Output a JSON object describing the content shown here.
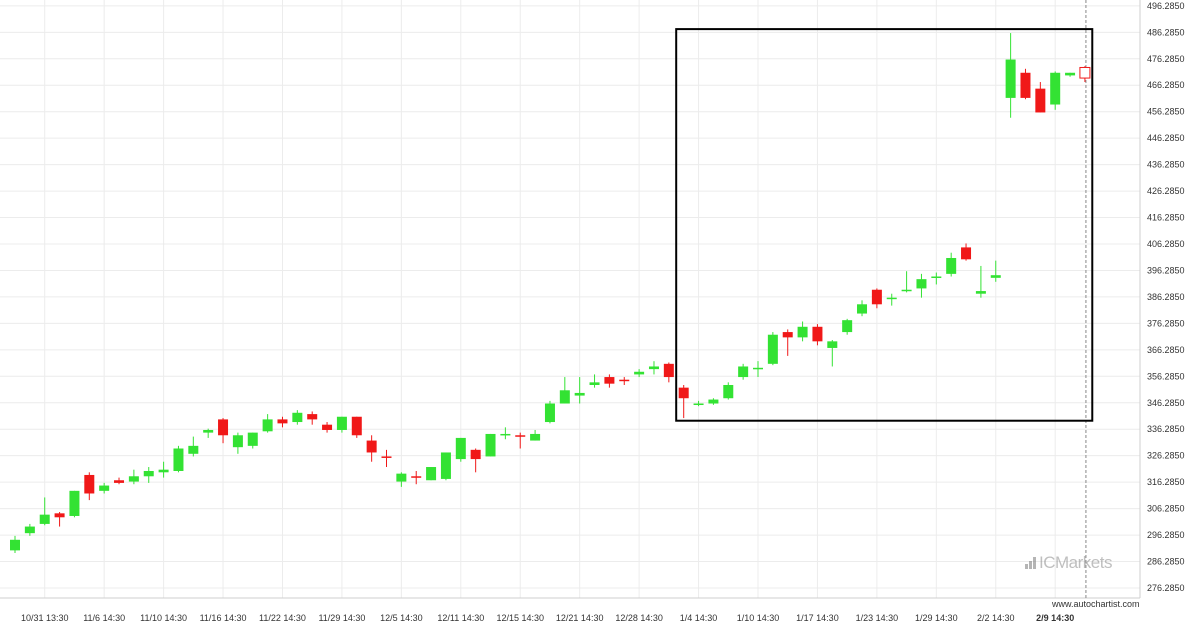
{
  "chart_data": {
    "type": "candlestick",
    "y_ticks": [
      "496.2850",
      "486.2850",
      "476.2850",
      "466.2850",
      "456.2850",
      "446.2850",
      "436.2850",
      "426.2850",
      "416.2850",
      "406.2850",
      "396.2850",
      "386.2850",
      "376.2850",
      "366.2850",
      "356.2850",
      "346.2850",
      "336.2850",
      "326.2850",
      "316.2850",
      "306.2850",
      "296.2850",
      "286.2850",
      "276.2850"
    ],
    "ylim": [
      272.5,
      498.5
    ],
    "grid": true,
    "x_ticks": [
      "10/31 13:30",
      "11/6 14:30",
      "11/10 14:30",
      "11/16 14:30",
      "11/22 14:30",
      "11/29 14:30",
      "12/5 14:30",
      "12/11 14:30",
      "12/15 14:30",
      "12/21 14:30",
      "12/28 14:30",
      "1/4 14:30",
      "1/10 14:30",
      "1/17 14:30",
      "1/23 14:30",
      "1/29 14:30",
      "2/2 14:30",
      "2/9 14:30"
    ],
    "x_tick_candle_index": [
      2,
      6,
      10,
      14,
      18,
      22,
      26,
      30,
      34,
      38,
      42,
      46,
      50,
      54,
      58,
      62,
      66,
      70
    ],
    "candles": [
      {
        "o": 290.5,
        "h": 296,
        "l": 289.5,
        "c": 294.5
      },
      {
        "o": 297,
        "h": 300.5,
        "l": 296,
        "c": 299.5
      },
      {
        "o": 300.5,
        "h": 310.5,
        "l": 300,
        "c": 304
      },
      {
        "o": 304.5,
        "h": 305,
        "l": 299.5,
        "c": 303
      },
      {
        "o": 303.5,
        "h": 313,
        "l": 303,
        "c": 313
      },
      {
        "o": 319,
        "h": 320,
        "l": 309.5,
        "c": 312
      },
      {
        "o": 313,
        "h": 316,
        "l": 312,
        "c": 315
      },
      {
        "o": 317,
        "h": 318,
        "l": 315.5,
        "c": 316
      },
      {
        "o": 316.5,
        "h": 321,
        "l": 315.5,
        "c": 318.5
      },
      {
        "o": 318.5,
        "h": 322,
        "l": 316,
        "c": 320.5
      },
      {
        "o": 320,
        "h": 324,
        "l": 318,
        "c": 321
      },
      {
        "o": 320.5,
        "h": 330,
        "l": 320,
        "c": 329
      },
      {
        "o": 327,
        "h": 333.5,
        "l": 326,
        "c": 330
      },
      {
        "o": 335,
        "h": 336.5,
        "l": 333,
        "c": 336
      },
      {
        "o": 340,
        "h": 340.5,
        "l": 331,
        "c": 334
      },
      {
        "o": 329.5,
        "h": 335,
        "l": 327,
        "c": 334
      },
      {
        "o": 330,
        "h": 335,
        "l": 329,
        "c": 335
      },
      {
        "o": 335.5,
        "h": 342,
        "l": 335,
        "c": 340
      },
      {
        "o": 340,
        "h": 341,
        "l": 337,
        "c": 338.5
      },
      {
        "o": 339,
        "h": 343.5,
        "l": 338,
        "c": 342.5
      },
      {
        "o": 342,
        "h": 343,
        "l": 338,
        "c": 340
      },
      {
        "o": 338,
        "h": 339,
        "l": 335,
        "c": 336
      },
      {
        "o": 336,
        "h": 341,
        "l": 335,
        "c": 341
      },
      {
        "o": 341,
        "h": 341,
        "l": 333,
        "c": 334
      },
      {
        "o": 332,
        "h": 334,
        "l": 324,
        "c": 327.5
      },
      {
        "o": 326,
        "h": 328.5,
        "l": 322,
        "c": 325.5
      },
      {
        "o": 316.5,
        "h": 320,
        "l": 314.5,
        "c": 319.5
      },
      {
        "o": 318.5,
        "h": 320.5,
        "l": 315.5,
        "c": 318
      },
      {
        "o": 317,
        "h": 322,
        "l": 317,
        "c": 322
      },
      {
        "o": 317.5,
        "h": 327.5,
        "l": 317,
        "c": 327.5
      },
      {
        "o": 325,
        "h": 333,
        "l": 324,
        "c": 333
      },
      {
        "o": 328.5,
        "h": 329,
        "l": 320,
        "c": 325
      },
      {
        "o": 326,
        "h": 334.5,
        "l": 326,
        "c": 334.5
      },
      {
        "o": 334,
        "h": 337,
        "l": 332.5,
        "c": 334.5
      },
      {
        "o": 334,
        "h": 335,
        "l": 329,
        "c": 333.5
      },
      {
        "o": 332,
        "h": 336,
        "l": 332,
        "c": 334.5
      },
      {
        "o": 339,
        "h": 347,
        "l": 338.5,
        "c": 346
      },
      {
        "o": 346,
        "h": 356,
        "l": 346,
        "c": 351
      },
      {
        "o": 349,
        "h": 356,
        "l": 346,
        "c": 350
      },
      {
        "o": 353,
        "h": 357,
        "l": 352,
        "c": 354
      },
      {
        "o": 356,
        "h": 357,
        "l": 352,
        "c": 353.5
      },
      {
        "o": 355,
        "h": 356,
        "l": 353,
        "c": 354.5
      },
      {
        "o": 357,
        "h": 359,
        "l": 356,
        "c": 358
      },
      {
        "o": 359,
        "h": 362,
        "l": 357,
        "c": 360
      },
      {
        "o": 361,
        "h": 361.5,
        "l": 354,
        "c": 356
      },
      {
        "o": 352,
        "h": 353,
        "l": 340.5,
        "c": 348
      },
      {
        "o": 346,
        "h": 347,
        "l": 345,
        "c": 346
      },
      {
        "o": 346,
        "h": 348,
        "l": 345.5,
        "c": 347.5
      },
      {
        "o": 348,
        "h": 354,
        "l": 347.5,
        "c": 353
      },
      {
        "o": 356,
        "h": 361,
        "l": 355,
        "c": 360
      },
      {
        "o": 359,
        "h": 362,
        "l": 356,
        "c": 359.5
      },
      {
        "o": 361,
        "h": 373,
        "l": 360.5,
        "c": 372
      },
      {
        "o": 373,
        "h": 374,
        "l": 364,
        "c": 371
      },
      {
        "o": 371,
        "h": 377,
        "l": 369.5,
        "c": 375
      },
      {
        "o": 375,
        "h": 376,
        "l": 368,
        "c": 369.5
      },
      {
        "o": 367,
        "h": 370,
        "l": 360,
        "c": 369.5
      },
      {
        "o": 373,
        "h": 378,
        "l": 372,
        "c": 377.5
      },
      {
        "o": 380,
        "h": 385,
        "l": 379,
        "c": 383.5
      },
      {
        "o": 389,
        "h": 389.5,
        "l": 382,
        "c": 383.5
      },
      {
        "o": 386,
        "h": 387.5,
        "l": 383,
        "c": 386
      },
      {
        "o": 388.5,
        "h": 396,
        "l": 388,
        "c": 389
      },
      {
        "o": 389.5,
        "h": 395,
        "l": 386,
        "c": 393
      },
      {
        "o": 394,
        "h": 395.5,
        "l": 391,
        "c": 394
      },
      {
        "o": 395,
        "h": 403,
        "l": 394,
        "c": 401
      },
      {
        "o": 405,
        "h": 406.5,
        "l": 400,
        "c": 400.5
      },
      {
        "o": 387.5,
        "h": 398,
        "l": 386,
        "c": 388.5
      },
      {
        "o": 393.5,
        "h": 400,
        "l": 392,
        "c": 394.5
      },
      {
        "o": 461.5,
        "h": 486,
        "l": 454,
        "c": 476
      },
      {
        "o": 471,
        "h": 472.5,
        "l": 461,
        "c": 461.5
      },
      {
        "o": 465,
        "h": 467.5,
        "l": 456,
        "c": 456
      },
      {
        "o": 459,
        "h": 471.5,
        "l": 457,
        "c": 471
      },
      {
        "o": 470,
        "h": 471,
        "l": 469.5,
        "c": 471
      },
      {
        "o": 473,
        "h": 473.5,
        "l": 467.5,
        "c": 469
      }
    ],
    "last_candle_hollow": true,
    "highlight_box": {
      "start_index": 45,
      "end_index": 73,
      "low": 339.5,
      "high": 487.5
    },
    "forecast_line_index": 72,
    "up_color": "#33e233",
    "down_color": "#f01818"
  },
  "watermark": {
    "brand": "ICMarkets",
    "color": "#8c8c8c"
  },
  "credit": "www.autochartist.com"
}
